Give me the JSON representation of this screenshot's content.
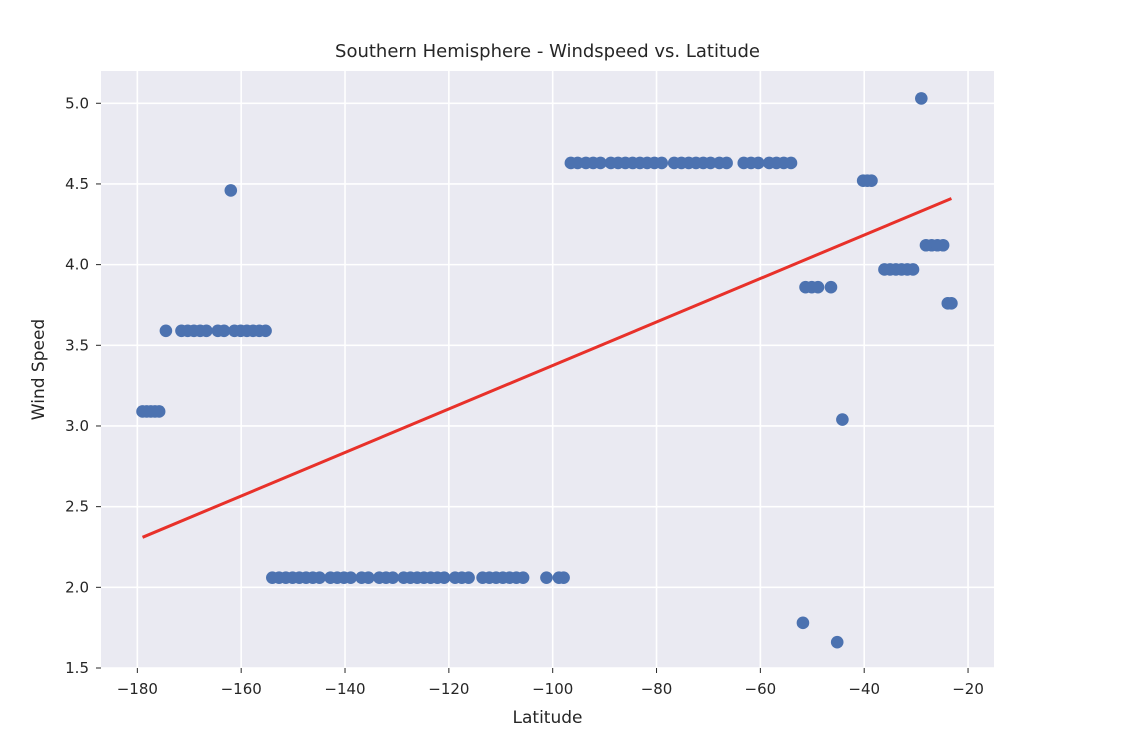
{
  "chart_data": {
    "type": "scatter",
    "title": "Southern Hemisphere - Windspeed vs. Latitude",
    "xlabel": "Latitude",
    "ylabel": "Wind Speed",
    "xlim": [
      -187,
      -15
    ],
    "ylim": [
      1.5,
      5.2
    ],
    "xticks": [
      -180,
      -160,
      -140,
      -120,
      -100,
      -80,
      -60,
      -40,
      -20
    ],
    "yticks": [
      1.5,
      2.0,
      2.5,
      3.0,
      3.5,
      4.0,
      4.5,
      5.0
    ],
    "xtick_labels": [
      "−180",
      "−160",
      "−140",
      "−120",
      "−100",
      "−80",
      "−60",
      "−40",
      "−20"
    ],
    "ytick_labels": [
      "1.5",
      "2.0",
      "2.5",
      "3.0",
      "3.5",
      "4.0",
      "4.5",
      "5.0"
    ],
    "grid": true,
    "point_color": "#4c72b0",
    "line_color": "#e8312a",
    "points": [
      {
        "x": -179,
        "y": 3.09
      },
      {
        "x": -178.2,
        "y": 3.09
      },
      {
        "x": -177.4,
        "y": 3.09
      },
      {
        "x": -176.6,
        "y": 3.09
      },
      {
        "x": -175.8,
        "y": 3.09
      },
      {
        "x": -174.5,
        "y": 3.59
      },
      {
        "x": -171.5,
        "y": 3.59
      },
      {
        "x": -170.3,
        "y": 3.59
      },
      {
        "x": -169.1,
        "y": 3.59
      },
      {
        "x": -167.9,
        "y": 3.59
      },
      {
        "x": -166.7,
        "y": 3.59
      },
      {
        "x": -164.5,
        "y": 3.59
      },
      {
        "x": -163.3,
        "y": 3.59
      },
      {
        "x": -161.3,
        "y": 3.59
      },
      {
        "x": -160.1,
        "y": 3.59
      },
      {
        "x": -158.9,
        "y": 3.59
      },
      {
        "x": -157.7,
        "y": 3.59
      },
      {
        "x": -156.5,
        "y": 3.59
      },
      {
        "x": -155.3,
        "y": 3.59
      },
      {
        "x": -162,
        "y": 4.46
      },
      {
        "x": -154,
        "y": 2.06
      },
      {
        "x": -152.7,
        "y": 2.06
      },
      {
        "x": -151.4,
        "y": 2.06
      },
      {
        "x": -150.1,
        "y": 2.06
      },
      {
        "x": -148.8,
        "y": 2.06
      },
      {
        "x": -147.5,
        "y": 2.06
      },
      {
        "x": -146.2,
        "y": 2.06
      },
      {
        "x": -144.9,
        "y": 2.06
      },
      {
        "x": -142.8,
        "y": 2.06
      },
      {
        "x": -141.5,
        "y": 2.06
      },
      {
        "x": -140.2,
        "y": 2.06
      },
      {
        "x": -138.9,
        "y": 2.06
      },
      {
        "x": -136.8,
        "y": 2.06
      },
      {
        "x": -135.5,
        "y": 2.06
      },
      {
        "x": -133.4,
        "y": 2.06
      },
      {
        "x": -132.1,
        "y": 2.06
      },
      {
        "x": -130.8,
        "y": 2.06
      },
      {
        "x": -128.7,
        "y": 2.06
      },
      {
        "x": -127.4,
        "y": 2.06
      },
      {
        "x": -126.1,
        "y": 2.06
      },
      {
        "x": -124.8,
        "y": 2.06
      },
      {
        "x": -123.5,
        "y": 2.06
      },
      {
        "x": -122.2,
        "y": 2.06
      },
      {
        "x": -120.9,
        "y": 2.06
      },
      {
        "x": -118.8,
        "y": 2.06
      },
      {
        "x": -117.5,
        "y": 2.06
      },
      {
        "x": -116.2,
        "y": 2.06
      },
      {
        "x": -113.5,
        "y": 2.06
      },
      {
        "x": -112.2,
        "y": 2.06
      },
      {
        "x": -110.9,
        "y": 2.06
      },
      {
        "x": -109.6,
        "y": 2.06
      },
      {
        "x": -108.3,
        "y": 2.06
      },
      {
        "x": -107,
        "y": 2.06
      },
      {
        "x": -105.7,
        "y": 2.06
      },
      {
        "x": -101.2,
        "y": 2.06
      },
      {
        "x": -98.8,
        "y": 2.06
      },
      {
        "x": -97.9,
        "y": 2.06
      },
      {
        "x": -96.5,
        "y": 4.63
      },
      {
        "x": -95.2,
        "y": 4.63
      },
      {
        "x": -93.6,
        "y": 4.63
      },
      {
        "x": -92.2,
        "y": 4.63
      },
      {
        "x": -90.8,
        "y": 4.63
      },
      {
        "x": -88.8,
        "y": 4.63
      },
      {
        "x": -87.4,
        "y": 4.63
      },
      {
        "x": -86,
        "y": 4.63
      },
      {
        "x": -84.6,
        "y": 4.63
      },
      {
        "x": -83.2,
        "y": 4.63
      },
      {
        "x": -81.8,
        "y": 4.63
      },
      {
        "x": -80.4,
        "y": 4.63
      },
      {
        "x": -79,
        "y": 4.63
      },
      {
        "x": -76.6,
        "y": 4.63
      },
      {
        "x": -75.2,
        "y": 4.63
      },
      {
        "x": -73.8,
        "y": 4.63
      },
      {
        "x": -72.4,
        "y": 4.63
      },
      {
        "x": -71,
        "y": 4.63
      },
      {
        "x": -69.6,
        "y": 4.63
      },
      {
        "x": -67.9,
        "y": 4.63
      },
      {
        "x": -66.5,
        "y": 4.63
      },
      {
        "x": -63.2,
        "y": 4.63
      },
      {
        "x": -61.8,
        "y": 4.63
      },
      {
        "x": -60.4,
        "y": 4.63
      },
      {
        "x": -58.3,
        "y": 4.63
      },
      {
        "x": -56.9,
        "y": 4.63
      },
      {
        "x": -55.5,
        "y": 4.63
      },
      {
        "x": -54.1,
        "y": 4.63
      },
      {
        "x": -51.8,
        "y": 1.78
      },
      {
        "x": -51.3,
        "y": 3.86
      },
      {
        "x": -50.1,
        "y": 3.86
      },
      {
        "x": -48.9,
        "y": 3.86
      },
      {
        "x": -46.4,
        "y": 3.86
      },
      {
        "x": -45.2,
        "y": 1.66
      },
      {
        "x": -44.2,
        "y": 3.04
      },
      {
        "x": -40.2,
        "y": 4.52
      },
      {
        "x": -39.4,
        "y": 4.52
      },
      {
        "x": -38.6,
        "y": 4.52
      },
      {
        "x": -36.1,
        "y": 3.97
      },
      {
        "x": -35,
        "y": 3.97
      },
      {
        "x": -33.9,
        "y": 3.97
      },
      {
        "x": -32.8,
        "y": 3.97
      },
      {
        "x": -31.7,
        "y": 3.97
      },
      {
        "x": -30.6,
        "y": 3.97
      },
      {
        "x": -29,
        "y": 5.03
      },
      {
        "x": -28.1,
        "y": 4.12
      },
      {
        "x": -27,
        "y": 4.12
      },
      {
        "x": -25.9,
        "y": 4.12
      },
      {
        "x": -24.8,
        "y": 4.12
      },
      {
        "x": -23.9,
        "y": 3.76
      },
      {
        "x": -23.2,
        "y": 3.76
      }
    ],
    "regression_line": {
      "x": [
        -179,
        -23.2
      ],
      "y": [
        2.31,
        4.41
      ]
    }
  }
}
